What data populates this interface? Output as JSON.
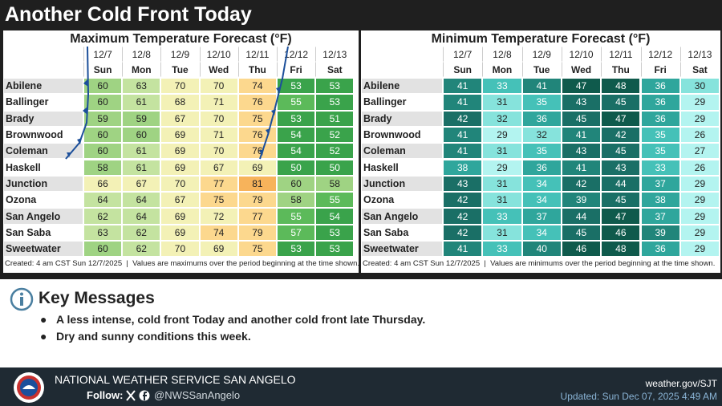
{
  "header": {
    "title": "Another Cold Front Today"
  },
  "max_table": {
    "title": "Maximum Temperature Forecast (°F)",
    "dates": [
      "12/7",
      "12/8",
      "12/9",
      "12/10",
      "12/11",
      "12/12",
      "12/13"
    ],
    "days": [
      "Sun",
      "Mon",
      "Tue",
      "Wed",
      "Thu",
      "Fri",
      "Sat"
    ],
    "rows": [
      {
        "city": "Abilene",
        "values": [
          60,
          63,
          70,
          70,
          74,
          53,
          53
        ]
      },
      {
        "city": "Ballinger",
        "values": [
          60,
          61,
          68,
          71,
          76,
          55,
          53
        ]
      },
      {
        "city": "Brady",
        "values": [
          59,
          59,
          67,
          70,
          75,
          53,
          51
        ]
      },
      {
        "city": "Brownwood",
        "values": [
          60,
          60,
          69,
          71,
          76,
          54,
          52
        ]
      },
      {
        "city": "Coleman",
        "values": [
          60,
          61,
          69,
          70,
          76,
          54,
          52
        ]
      },
      {
        "city": "Haskell",
        "values": [
          58,
          61,
          69,
          67,
          69,
          50,
          50
        ]
      },
      {
        "city": "Junction",
        "values": [
          66,
          67,
          70,
          77,
          81,
          60,
          58
        ]
      },
      {
        "city": "Ozona",
        "values": [
          64,
          64,
          67,
          75,
          79,
          58,
          55
        ]
      },
      {
        "city": "San Angelo",
        "values": [
          62,
          64,
          69,
          72,
          77,
          55,
          54
        ]
      },
      {
        "city": "San Saba",
        "values": [
          63,
          62,
          69,
          74,
          79,
          57,
          53
        ]
      },
      {
        "city": "Sweetwater",
        "values": [
          60,
          62,
          70,
          69,
          75,
          53,
          53
        ]
      }
    ],
    "footnote": "Created: 4 am CST Sun 12/7/2025  |  Values are maximums over the period beginning at the time shown."
  },
  "min_table": {
    "title": "Minimum Temperature Forecast (°F)",
    "dates": [
      "12/7",
      "12/8",
      "12/9",
      "12/10",
      "12/11",
      "12/12",
      "12/13"
    ],
    "days": [
      "Sun",
      "Mon",
      "Tue",
      "Wed",
      "Thu",
      "Fri",
      "Sat"
    ],
    "rows": [
      {
        "city": "Abilene",
        "values": [
          41,
          33,
          41,
          47,
          48,
          36,
          30
        ]
      },
      {
        "city": "Ballinger",
        "values": [
          41,
          31,
          35,
          43,
          45,
          36,
          29
        ]
      },
      {
        "city": "Brady",
        "values": [
          42,
          32,
          36,
          45,
          47,
          36,
          29
        ]
      },
      {
        "city": "Brownwood",
        "values": [
          41,
          29,
          32,
          41,
          42,
          35,
          26
        ]
      },
      {
        "city": "Coleman",
        "values": [
          41,
          31,
          35,
          43,
          45,
          35,
          27
        ]
      },
      {
        "city": "Haskell",
        "values": [
          38,
          29,
          36,
          41,
          43,
          33,
          26
        ]
      },
      {
        "city": "Junction",
        "values": [
          43,
          31,
          34,
          42,
          44,
          37,
          29
        ]
      },
      {
        "city": "Ozona",
        "values": [
          42,
          31,
          34,
          39,
          45,
          38,
          29
        ]
      },
      {
        "city": "San Angelo",
        "values": [
          42,
          33,
          37,
          44,
          47,
          37,
          29
        ]
      },
      {
        "city": "San Saba",
        "values": [
          42,
          31,
          34,
          45,
          46,
          39,
          29
        ]
      },
      {
        "city": "Sweetwater",
        "values": [
          41,
          33,
          40,
          46,
          48,
          36,
          29
        ]
      }
    ],
    "footnote": "Created: 4 am CST Sun 12/7/2025  |  Values are minimums over the period beginning at the time shown."
  },
  "key_messages": {
    "title": "Key Messages",
    "items": [
      "A less intense, cold front Today and another cold front late Thursday.",
      "Dry and sunny conditions this week."
    ]
  },
  "footer": {
    "office": "NATIONAL WEATHER SERVICE SAN ANGELO",
    "follow": "Follow:",
    "handle": "@NWSSanAngelo",
    "website": "weather.gov/SJT",
    "updated": "Updated: Sun Dec 07, 2025 4:49 AM"
  }
}
